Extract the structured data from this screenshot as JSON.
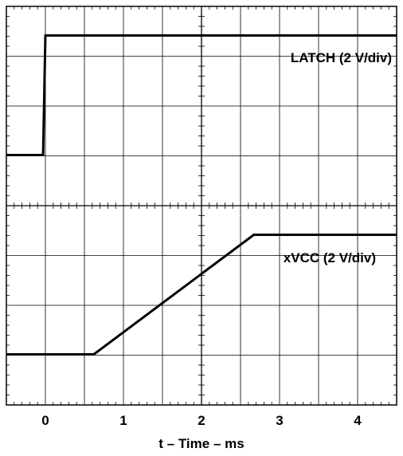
{
  "chart_data": {
    "type": "line",
    "xlabel": "t – Time – ms",
    "xlim": [
      -0.5,
      4.5
    ],
    "x_ticks": [
      0,
      1,
      2,
      3,
      4
    ],
    "x_tick_labels": [
      "0",
      "1",
      "2",
      "3",
      "4"
    ],
    "grid": true,
    "series": [
      {
        "name": "LATCH (2 V/div)",
        "units": "div",
        "x": [
          -0.5,
          -0.03,
          0.0,
          4.5
        ],
        "y": [
          0,
          0,
          2.4,
          2.4
        ]
      },
      {
        "name": "xVCC (2 V/div)",
        "units": "div",
        "x": [
          -0.5,
          0.62,
          2.67,
          4.5
        ],
        "y": [
          0,
          0,
          2.4,
          2.4
        ]
      }
    ]
  }
}
